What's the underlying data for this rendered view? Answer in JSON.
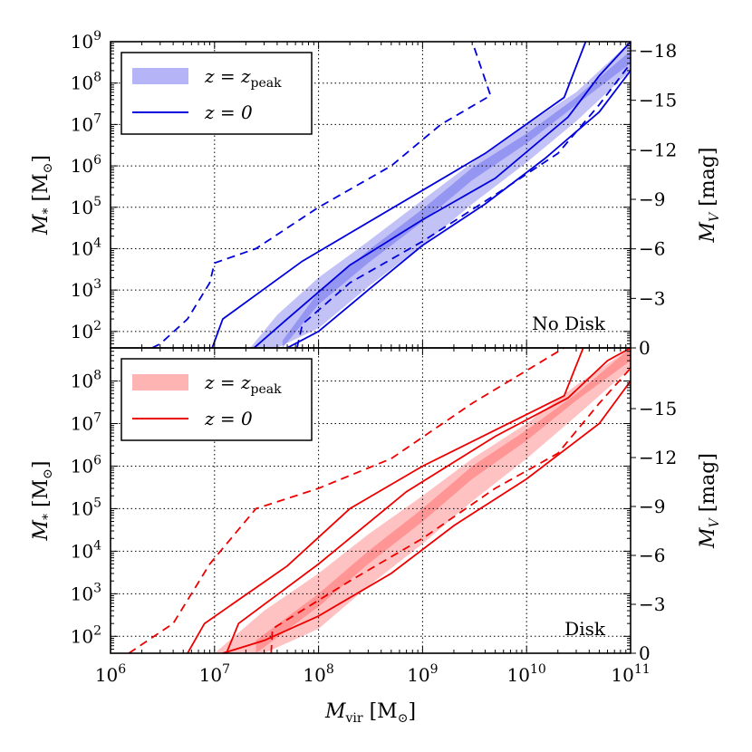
{
  "chart_data": [
    {
      "type": "line",
      "name": "top-panel",
      "panel_label": "No Disk",
      "color": "#0000dd",
      "band_color": "#7777ee",
      "xscale": "log",
      "yscale": "log",
      "xlim": [
        1000000.0,
        100000000000.0
      ],
      "ylim": [
        40,
        1000000000.0
      ],
      "ylabel": "M* [M⊙]",
      "y2label": "MV [mag]",
      "y2ticks": [
        "−18",
        "−15",
        "−12",
        "−9",
        "−6",
        "−3",
        "0"
      ],
      "legend": {
        "placement": "top-left",
        "entries": [
          {
            "kind": "band",
            "label": "z = zpeak"
          },
          {
            "kind": "line",
            "label": "z = 0"
          }
        ]
      },
      "bands": {
        "outer": {
          "x": [
            22000000.0,
            40000000.0,
            100000000.0,
            300000000.0,
            1000000000.0,
            3000000000.0,
            10000000000.0,
            30000000000.0,
            100000000000.0
          ],
          "low": [
            40,
            40,
            120,
            1200.0,
            12000.0,
            120000.0,
            1200000.0,
            12000000.0,
            200000000.0
          ],
          "high": [
            40,
            250,
            2000.0,
            15000.0,
            150000.0,
            1200000.0,
            10000000.0,
            60000000.0,
            1000000000.0
          ]
        },
        "inner": {
          "x": [
            45000000.0,
            100000000.0,
            300000000.0,
            1000000000.0,
            3000000000.0,
            10000000000.0,
            30000000000.0,
            100000000000.0
          ],
          "low": [
            40,
            450,
            4500.0,
            45000.0,
            450000.0,
            3500000.0,
            30000000.0,
            300000000.0
          ],
          "high": [
            60,
            900,
            9000.0,
            90000.0,
            900000.0,
            6000000.0,
            45000000.0,
            600000000.0
          ]
        }
      },
      "series": [
        {
          "name": "z=0 upper",
          "style": "solid",
          "x": [
            9500000.0,
            12000000.0,
            70000000.0,
            4000000000.0,
            23000000000.0,
            37000000000.0
          ],
          "y": [
            40,
            200,
            5000.0,
            2000000.0,
            45000000.0,
            1000000000.0
          ]
        },
        {
          "name": "z=0 middle",
          "style": "solid",
          "x": [
            24000000.0,
            50000000.0,
            200000000.0,
            1000000000.0,
            5000000000.0,
            25000000000.0,
            50000000000.0,
            100000000000.0
          ],
          "y": [
            40,
            200,
            4000.0,
            50000.0,
            500000.0,
            15000000.0,
            150000000.0,
            1000000000.0
          ]
        },
        {
          "name": "z=0 lower",
          "style": "solid",
          "x": [
            50000000.0,
            100000000.0,
            300000000.0,
            1000000000.0,
            4000000000.0,
            15000000000.0,
            50000000000.0,
            100000000000.0
          ],
          "y": [
            40,
            100,
            1000.0,
            12000.0,
            120000.0,
            1500000.0,
            20000000.0,
            200000000.0
          ]
        },
        {
          "name": "z=0 dashed low",
          "style": "dashed",
          "x": [
            62000000.0,
            70000000.0,
            200000000.0,
            1000000000.0,
            5000000000.0,
            20000000000.0,
            50000000000.0,
            100000000000.0
          ],
          "y": [
            40,
            150,
            1500.0,
            15000.0,
            200000.0,
            2000000.0,
            30000000.0,
            300000000.0
          ]
        },
        {
          "name": "z=0 dashed high",
          "style": "dashed",
          "x": [
            2500000.0,
            3000000.0,
            5500000.0,
            9000000.0,
            10000000.0,
            25000000.0,
            100000000.0,
            500000000.0,
            1500000000.0,
            4500000000.0,
            3000000000.0
          ],
          "y": [
            40,
            50,
            200,
            1500.0,
            4500.0,
            10000.0,
            100000.0,
            1000000.0,
            10000000.0,
            50000000.0,
            1000000000.0
          ]
        }
      ]
    },
    {
      "type": "line",
      "name": "bottom-panel",
      "panel_label": "Disk",
      "color": "#ee0000",
      "band_color": "#ff7777",
      "xscale": "log",
      "yscale": "log",
      "xlim": [
        1000000.0,
        100000000000.0
      ],
      "ylim": [
        40,
        600000000.0
      ],
      "xlabel": "Mvir [M⊙]",
      "ylabel": "M* [M⊙]",
      "y2label": "MV [mag]",
      "y2ticks": [
        "−15",
        "−12",
        "−9",
        "−6",
        "−3",
        "0"
      ],
      "legend": {
        "placement": "top-left",
        "entries": [
          {
            "kind": "band",
            "label": "z = zpeak"
          },
          {
            "kind": "line",
            "label": "z = 0"
          }
        ]
      },
      "bands": {
        "outer": {
          "x": [
            10000000.0,
            30000000.0,
            100000000.0,
            300000000.0,
            1000000000.0,
            3000000000.0,
            10000000000.0,
            30000000000.0,
            100000000000.0
          ],
          "low": [
            40,
            40,
            150,
            1500.0,
            15000.0,
            150000.0,
            1500000.0,
            15000000.0,
            200000000.0
          ],
          "high": [
            40,
            400,
            3000.0,
            25000.0,
            200000.0,
            1500000.0,
            10000000.0,
            80000000.0,
            600000000.0
          ]
        },
        "inner": {
          "x": [
            25000000.0,
            100000000.0,
            300000000.0,
            1000000000.0,
            3000000000.0,
            10000000000.0,
            30000000000.0,
            100000000000.0
          ],
          "low": [
            40,
            500,
            5000.0,
            50000.0,
            500000.0,
            4000000.0,
            35000000.0,
            300000000.0
          ],
          "high": [
            80,
            1000.0,
            10000.0,
            100000.0,
            1000000.0,
            7000000.0,
            50000000.0,
            600000000.0
          ]
        }
      },
      "series": [
        {
          "name": "z=0 upper",
          "style": "solid",
          "x": [
            5500000.0,
            8000000.0,
            50000000.0,
            200000000.0,
            1000000000.0,
            23000000000.0,
            35000000000.0
          ],
          "y": [
            40,
            200,
            4500.0,
            100000.0,
            1000000.0,
            45000000.0,
            600000000.0
          ]
        },
        {
          "name": "z=0 middle",
          "style": "solid",
          "x": [
            13000000.0,
            17000000.0,
            100000000.0,
            700000000.0,
            5000000000.0,
            25000000000.0,
            60000000000.0,
            100000000000.0
          ],
          "y": [
            40,
            200,
            5000.0,
            250000.0,
            5000000.0,
            40000000.0,
            300000000.0,
            600000000.0
          ]
        },
        {
          "name": "z=0 lower",
          "style": "solid",
          "x": [
            12000000.0,
            30000000.0,
            100000000.0,
            500000000.0,
            2000000000.0,
            10000000000.0,
            50000000000.0,
            100000000000.0
          ],
          "y": [
            40,
            80,
            300,
            3000.0,
            40000.0,
            500000.0,
            10000000.0,
            100000000.0
          ]
        },
        {
          "name": "z=0 dashed low",
          "style": "dashed",
          "x": [
            35000000.0,
            36000000.0,
            200000000.0,
            1000000000.0,
            5000000000.0,
            20000000000.0,
            50000000000.0,
            100000000000.0
          ],
          "y": [
            40,
            150,
            2000.0,
            20000.0,
            300000.0,
            2000000.0,
            30000000.0,
            200000000.0
          ]
        },
        {
          "name": "z=0 dashed high",
          "style": "dashed",
          "x": [
            1500000.0,
            4000000.0,
            9000000.0,
            25000000.0,
            100000000.0,
            500000000.0,
            3000000000.0,
            23000000000.0
          ],
          "y": [
            40,
            200,
            5000.0,
            100000.0,
            300000.0,
            1500000.0,
            30000000.0,
            600000000.0
          ]
        }
      ]
    }
  ],
  "x_ticks": [
    "10",
    "10",
    "10",
    "10",
    "10",
    "10"
  ],
  "x_tick_exps": [
    "6",
    "7",
    "8",
    "9",
    "10",
    "11"
  ],
  "top_y_ticks": [
    "10",
    "10",
    "10",
    "10",
    "10",
    "10",
    "10",
    "10"
  ],
  "top_y_tick_exps": [
    "9",
    "8",
    "7",
    "6",
    "5",
    "4",
    "3",
    "2"
  ],
  "bottom_y_ticks": [
    "10",
    "10",
    "10",
    "10",
    "10",
    "10",
    "10"
  ],
  "bottom_y_tick_exps": [
    "8",
    "7",
    "6",
    "5",
    "4",
    "3",
    "2"
  ],
  "labels": {
    "ylabel_main": "M",
    "ylabel_sub": "*",
    "ylabel_unit": "[M",
    "ylabel_sun": "⊙",
    "ylabel_close": "]",
    "y2label_main": "M",
    "y2label_sub": "V",
    "y2label_unit": "[mag]",
    "xlabel_main": "M",
    "xlabel_sub": "vir",
    "xlabel_unit": "[M",
    "xlabel_sun": "⊙",
    "xlabel_close": "]",
    "legend_band": "z = z",
    "legend_band_sub": "peak",
    "legend_line": "z = 0"
  }
}
